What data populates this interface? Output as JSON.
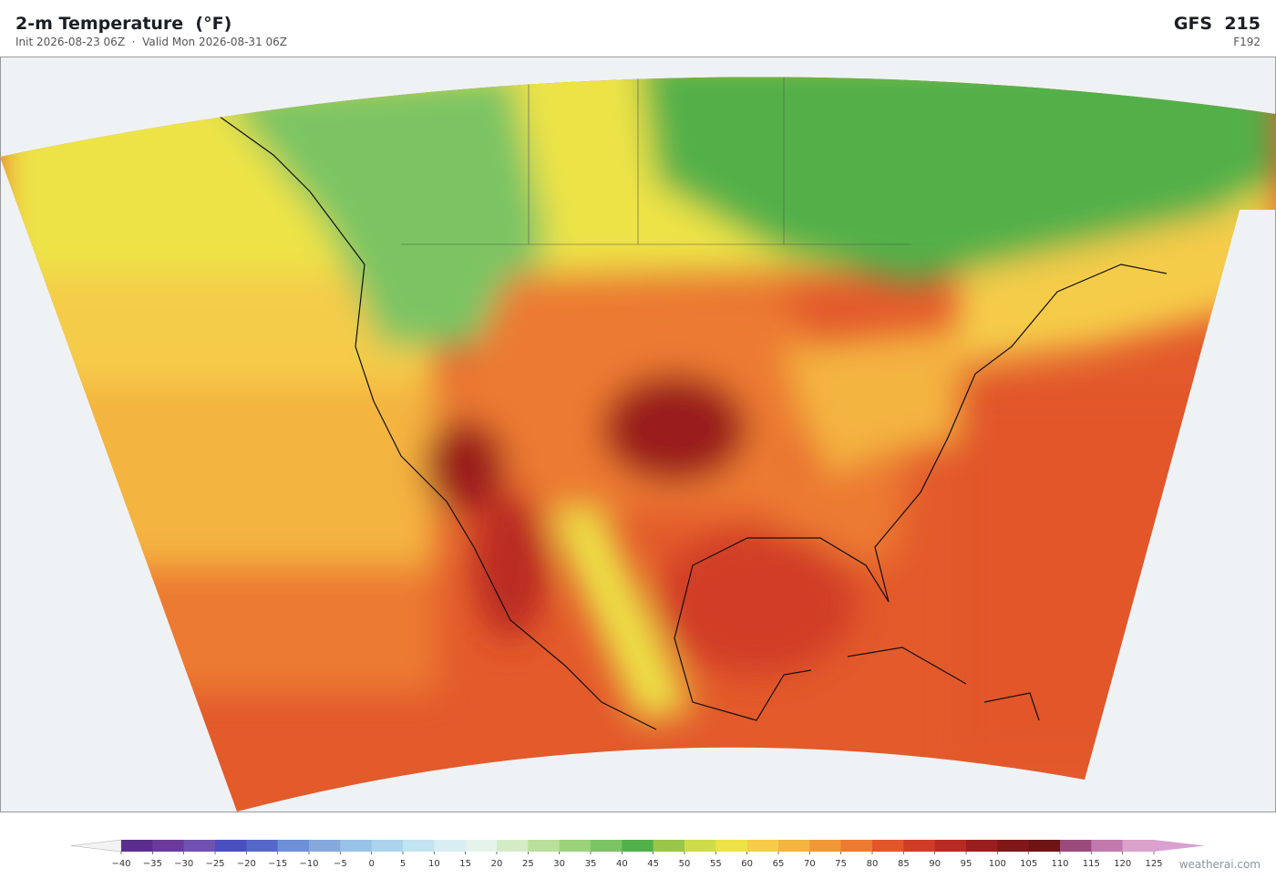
{
  "header": {
    "title": "2-m Temperature  (°F)",
    "subtitle": "Init 2026-08-23 06Z  ·  Valid Mon 2026-08-31 06Z",
    "model": "GFS  215",
    "forecast_hour": "F192"
  },
  "colorbar": {
    "ticks": [
      {
        "value": -40,
        "label": "−40"
      },
      {
        "value": -35,
        "label": "−35"
      },
      {
        "value": -30,
        "label": "−30"
      },
      {
        "value": -25,
        "label": "−25"
      },
      {
        "value": -20,
        "label": "−20"
      },
      {
        "value": -15,
        "label": "−15"
      },
      {
        "value": -10,
        "label": "−10"
      },
      {
        "value": -5,
        "label": "−5"
      },
      0,
      5,
      10,
      15,
      20,
      25,
      30,
      35,
      40,
      45,
      50,
      55,
      60,
      65,
      70,
      75,
      80,
      85,
      90,
      95,
      100,
      105,
      110,
      115,
      120,
      125
    ],
    "colors": [
      "#5b2d8e",
      "#6a3a9c",
      "#7052b0",
      "#4a4fbf",
      "#5568c9",
      "#6d8fd6",
      "#86a9dc",
      "#99c3e6",
      "#abd4ec",
      "#c2e3f0",
      "#d8eef3",
      "#e6f3ec",
      "#d4ecc6",
      "#b9e09a",
      "#9bd27a",
      "#7bc463",
      "#52b04a",
      "#98c64a",
      "#cfdc4a",
      "#ede347",
      "#f5cc48",
      "#f4b440",
      "#f09838",
      "#ec7a31",
      "#e2562a",
      "#d13c26",
      "#b92a22",
      "#9a1e1e",
      "#801818",
      "#6e1414",
      "#9b4a7c",
      "#c27aae",
      "#dba3cb"
    ],
    "under_color": "#f2f2f2",
    "over_color": "#d9a0d0"
  },
  "footer": {
    "credit": "weatherai.com"
  }
}
